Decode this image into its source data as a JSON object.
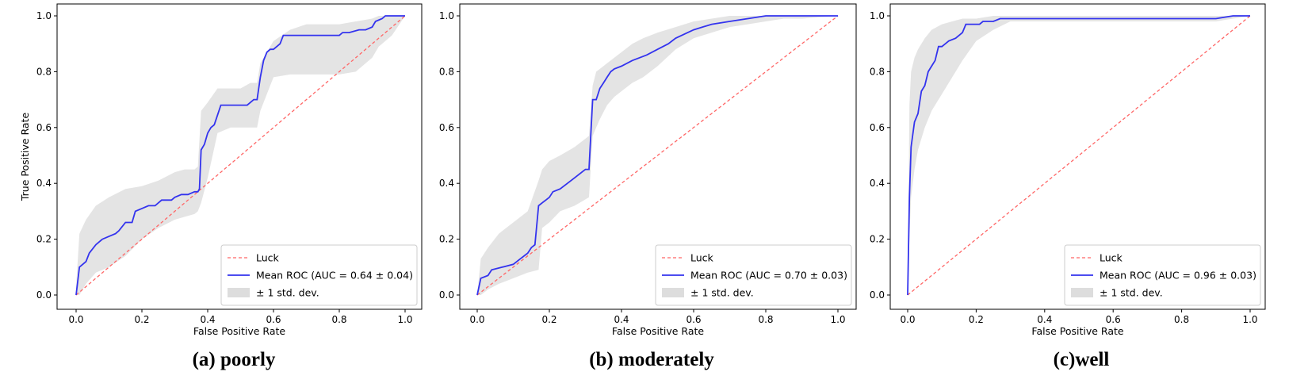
{
  "chart_data": [
    {
      "type": "line",
      "caption": "(a) poorly",
      "xlabel": "False Positive Rate",
      "ylabel": "True Positive Rate",
      "xlim": [
        0,
        1
      ],
      "ylim": [
        0,
        1
      ],
      "xticks": [
        "0.0",
        "0.2",
        "0.4",
        "0.6",
        "0.8",
        "1.0"
      ],
      "yticks": [
        "0.0",
        "0.2",
        "0.4",
        "0.6",
        "0.8",
        "1.0"
      ],
      "grid": false,
      "legend_position": "bottom-right",
      "legend": [
        "Luck",
        "Mean ROC (AUC = 0.64 ± 0.04)",
        "± 1 std. dev."
      ],
      "series": [
        {
          "name": "Mean ROC (AUC = 0.64 ± 0.04)",
          "color": "#3333ee",
          "x": [
            0.0,
            0.01,
            0.03,
            0.04,
            0.06,
            0.08,
            0.1,
            0.12,
            0.13,
            0.15,
            0.17,
            0.18,
            0.2,
            0.22,
            0.24,
            0.26,
            0.29,
            0.3,
            0.32,
            0.34,
            0.36,
            0.37,
            0.375,
            0.38,
            0.39,
            0.4,
            0.41,
            0.42,
            0.44,
            0.46,
            0.5,
            0.52,
            0.54,
            0.55,
            0.56,
            0.57,
            0.58,
            0.59,
            0.6,
            0.62,
            0.63,
            0.65,
            0.8,
            0.81,
            0.83,
            0.86,
            0.88,
            0.9,
            0.91,
            0.93,
            0.94,
            0.96,
            1.0
          ],
          "y": [
            0.0,
            0.1,
            0.12,
            0.15,
            0.18,
            0.2,
            0.21,
            0.22,
            0.23,
            0.26,
            0.26,
            0.3,
            0.31,
            0.32,
            0.32,
            0.34,
            0.34,
            0.35,
            0.36,
            0.36,
            0.37,
            0.37,
            0.38,
            0.52,
            0.54,
            0.58,
            0.6,
            0.61,
            0.68,
            0.68,
            0.68,
            0.68,
            0.7,
            0.7,
            0.78,
            0.84,
            0.87,
            0.88,
            0.88,
            0.9,
            0.93,
            0.93,
            0.93,
            0.94,
            0.94,
            0.95,
            0.95,
            0.96,
            0.98,
            0.99,
            1.0,
            1.0,
            1.0
          ]
        },
        {
          "name": "Luck",
          "color": "#ff6666",
          "x": [
            0,
            1
          ],
          "y": [
            0,
            1
          ]
        }
      ],
      "band": {
        "name": "± 1 std. dev.",
        "color": "#bbbbbb",
        "x": [
          0.0,
          0.01,
          0.03,
          0.06,
          0.1,
          0.15,
          0.2,
          0.25,
          0.3,
          0.33,
          0.36,
          0.37,
          0.38,
          0.4,
          0.43,
          0.47,
          0.5,
          0.53,
          0.55,
          0.56,
          0.6,
          0.65,
          0.7,
          0.75,
          0.8,
          0.85,
          0.9,
          0.92,
          0.94,
          0.96,
          1.0
        ],
        "upper": [
          0.03,
          0.22,
          0.27,
          0.32,
          0.35,
          0.38,
          0.39,
          0.41,
          0.44,
          0.45,
          0.45,
          0.46,
          0.66,
          0.69,
          0.74,
          0.74,
          0.74,
          0.76,
          0.76,
          0.83,
          0.91,
          0.95,
          0.97,
          0.97,
          0.97,
          0.98,
          0.99,
          1.0,
          1.0,
          1.0,
          1.0
        ],
        "lower": [
          0.0,
          0.0,
          0.04,
          0.08,
          0.1,
          0.14,
          0.2,
          0.24,
          0.27,
          0.28,
          0.29,
          0.3,
          0.33,
          0.42,
          0.58,
          0.6,
          0.6,
          0.6,
          0.6,
          0.66,
          0.78,
          0.79,
          0.79,
          0.79,
          0.79,
          0.8,
          0.85,
          0.89,
          0.91,
          0.93,
          1.0
        ]
      }
    },
    {
      "type": "line",
      "caption": "(b) moderately",
      "xlabel": "False Positive Rate",
      "ylabel": "",
      "xlim": [
        0,
        1
      ],
      "ylim": [
        0,
        1
      ],
      "xticks": [
        "0.0",
        "0.2",
        "0.4",
        "0.6",
        "0.8",
        "1.0"
      ],
      "yticks": [
        "0.0",
        "0.2",
        "0.4",
        "0.6",
        "0.8",
        "1.0"
      ],
      "grid": false,
      "legend_position": "bottom-right",
      "legend": [
        "Luck",
        "Mean ROC (AUC = 0.70 ± 0.03)",
        "± 1 std. dev."
      ],
      "series": [
        {
          "name": "Mean ROC (AUC = 0.70 ± 0.03)",
          "color": "#3333ee",
          "x": [
            0.0,
            0.01,
            0.03,
            0.04,
            0.07,
            0.1,
            0.12,
            0.14,
            0.15,
            0.16,
            0.17,
            0.18,
            0.19,
            0.2,
            0.21,
            0.23,
            0.25,
            0.27,
            0.29,
            0.3,
            0.31,
            0.32,
            0.33,
            0.34,
            0.35,
            0.36,
            0.37,
            0.38,
            0.4,
            0.43,
            0.45,
            0.47,
            0.5,
            0.53,
            0.55,
            0.6,
            0.65,
            0.7,
            0.75,
            0.8,
            0.9,
            1.0
          ],
          "y": [
            0.0,
            0.06,
            0.07,
            0.09,
            0.1,
            0.11,
            0.13,
            0.15,
            0.17,
            0.18,
            0.32,
            0.33,
            0.34,
            0.35,
            0.37,
            0.38,
            0.4,
            0.42,
            0.44,
            0.45,
            0.45,
            0.7,
            0.7,
            0.74,
            0.76,
            0.78,
            0.8,
            0.81,
            0.82,
            0.84,
            0.85,
            0.86,
            0.88,
            0.9,
            0.92,
            0.95,
            0.97,
            0.98,
            0.99,
            1.0,
            1.0,
            1.0
          ]
        },
        {
          "name": "Luck",
          "color": "#ff6666",
          "x": [
            0,
            1
          ],
          "y": [
            0,
            1
          ]
        }
      ],
      "band": {
        "name": "± 1 std. dev.",
        "color": "#bbbbbb",
        "x": [
          0.0,
          0.01,
          0.03,
          0.06,
          0.1,
          0.14,
          0.17,
          0.18,
          0.2,
          0.23,
          0.27,
          0.31,
          0.32,
          0.33,
          0.34,
          0.36,
          0.38,
          0.4,
          0.43,
          0.46,
          0.5,
          0.55,
          0.6,
          0.65,
          0.7,
          0.75,
          0.8,
          0.85,
          0.9,
          1.0
        ],
        "upper": [
          0.0,
          0.13,
          0.17,
          0.22,
          0.26,
          0.3,
          0.41,
          0.45,
          0.48,
          0.5,
          0.53,
          0.57,
          0.75,
          0.8,
          0.81,
          0.83,
          0.85,
          0.87,
          0.9,
          0.92,
          0.94,
          0.96,
          0.98,
          0.99,
          1.0,
          1.0,
          1.0,
          1.0,
          1.0,
          1.0
        ],
        "lower": [
          0.0,
          0.0,
          0.02,
          0.04,
          0.06,
          0.08,
          0.09,
          0.24,
          0.26,
          0.3,
          0.32,
          0.35,
          0.57,
          0.6,
          0.63,
          0.68,
          0.71,
          0.73,
          0.76,
          0.78,
          0.82,
          0.88,
          0.92,
          0.94,
          0.96,
          0.97,
          0.98,
          0.99,
          0.99,
          1.0
        ]
      }
    },
    {
      "type": "line",
      "caption": "(c)well",
      "xlabel": "False Positive Rate",
      "ylabel": "",
      "xlim": [
        0,
        1
      ],
      "ylim": [
        0,
        1
      ],
      "xticks": [
        "0.0",
        "0.2",
        "0.4",
        "0.6",
        "0.8",
        "1.0"
      ],
      "yticks": [
        "0.0",
        "0.2",
        "0.4",
        "0.6",
        "0.8",
        "1.0"
      ],
      "grid": false,
      "legend_position": "bottom-right",
      "legend": [
        "Luck",
        "Mean ROC (AUC = 0.96 ± 0.03)",
        "± 1 std. dev."
      ],
      "series": [
        {
          "name": "Mean ROC (AUC = 0.96 ± 0.03)",
          "color": "#3333ee",
          "x": [
            0.0,
            0.005,
            0.01,
            0.02,
            0.03,
            0.04,
            0.05,
            0.06,
            0.07,
            0.08,
            0.09,
            0.1,
            0.11,
            0.12,
            0.14,
            0.16,
            0.17,
            0.18,
            0.21,
            0.22,
            0.25,
            0.27,
            0.3,
            0.4,
            0.5,
            0.6,
            0.7,
            0.8,
            0.9,
            0.95,
            1.0
          ],
          "y": [
            0.0,
            0.35,
            0.53,
            0.62,
            0.65,
            0.73,
            0.75,
            0.8,
            0.82,
            0.84,
            0.89,
            0.89,
            0.9,
            0.91,
            0.92,
            0.94,
            0.97,
            0.97,
            0.97,
            0.98,
            0.98,
            0.99,
            0.99,
            0.99,
            0.99,
            0.99,
            0.99,
            0.99,
            0.99,
            1.0,
            1.0
          ]
        },
        {
          "name": "Luck",
          "color": "#ff6666",
          "x": [
            0,
            1
          ],
          "y": [
            0,
            1
          ]
        }
      ],
      "band": {
        "name": "± 1 std. dev.",
        "color": "#bbbbbb",
        "x": [
          0.0,
          0.005,
          0.01,
          0.02,
          0.03,
          0.05,
          0.07,
          0.1,
          0.13,
          0.16,
          0.2,
          0.25,
          0.3,
          0.5,
          0.8,
          0.9,
          0.95,
          1.0
        ],
        "upper": [
          0.0,
          0.68,
          0.8,
          0.85,
          0.88,
          0.92,
          0.95,
          0.97,
          0.98,
          0.99,
          0.99,
          1.0,
          1.0,
          1.0,
          1.0,
          1.0,
          1.0,
          1.0
        ],
        "lower": [
          0.0,
          0.2,
          0.35,
          0.45,
          0.52,
          0.6,
          0.66,
          0.72,
          0.78,
          0.84,
          0.91,
          0.95,
          0.98,
          0.98,
          0.98,
          0.98,
          0.99,
          1.0
        ]
      }
    }
  ]
}
